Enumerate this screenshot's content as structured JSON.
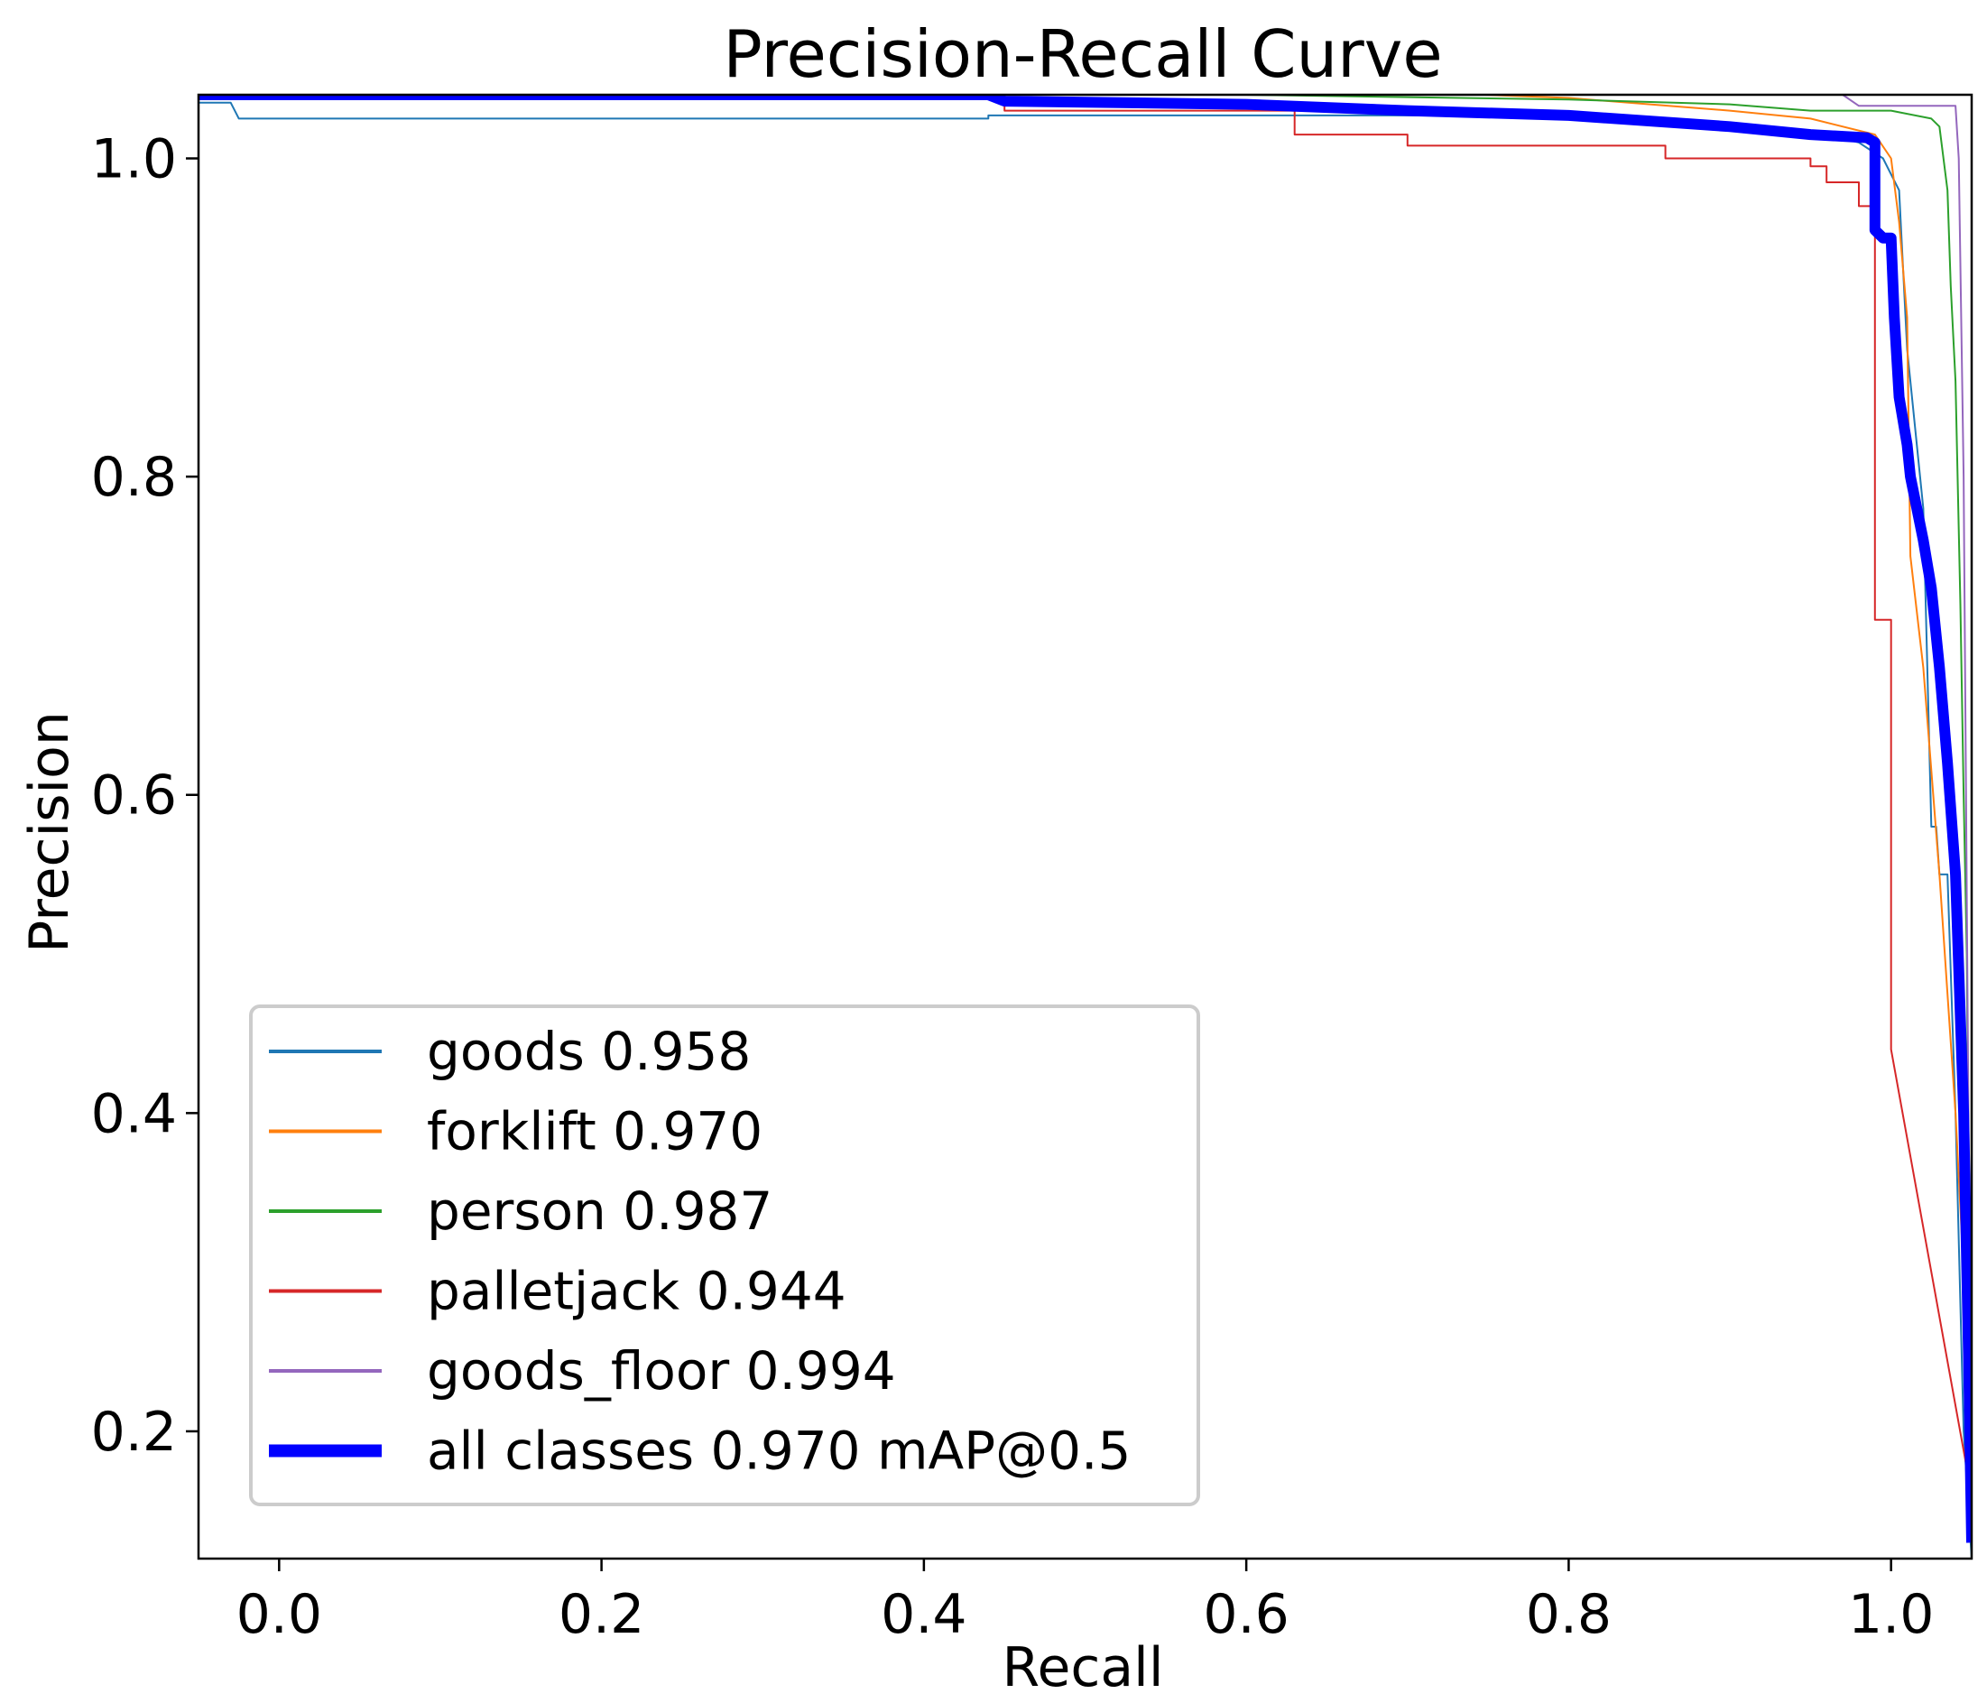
{
  "chart_data": {
    "type": "line",
    "title": "Precision-Recall Curve",
    "xlabel": "Recall",
    "ylabel": "Precision",
    "xlim": [
      -0.05,
      1.05
    ],
    "ylim": [
      0.12,
      1.04
    ],
    "grid": false,
    "legend_position": "lower-left",
    "xticks": [
      0.0,
      0.2,
      0.4,
      0.6,
      0.8,
      1.0
    ],
    "xtick_labels": [
      "0.0",
      "0.2",
      "0.4",
      "0.6",
      "0.8",
      "1.0"
    ],
    "yticks": [
      0.2,
      0.4,
      0.6,
      0.8,
      1.0
    ],
    "ytick_labels": [
      "0.2",
      "0.4",
      "0.6",
      "0.8",
      "1.0"
    ],
    "series": [
      {
        "name": "goods",
        "score": "0.958",
        "label": "goods 0.958",
        "color": "#1f77b4",
        "width": 2,
        "points": [
          [
            -0.05,
            1.035
          ],
          [
            -0.03,
            1.035
          ],
          [
            -0.025,
            1.025
          ],
          [
            0.44,
            1.025
          ],
          [
            0.44,
            1.027
          ],
          [
            0.75,
            1.027
          ],
          [
            0.8,
            1.025
          ],
          [
            0.9,
            1.02
          ],
          [
            0.96,
            1.015
          ],
          [
            0.98,
            1.01
          ],
          [
            0.995,
            1.0
          ],
          [
            1.0,
            0.99
          ],
          [
            1.005,
            0.98
          ],
          [
            1.01,
            0.88
          ],
          [
            1.02,
            0.78
          ],
          [
            1.025,
            0.58
          ],
          [
            1.028,
            0.58
          ],
          [
            1.03,
            0.55
          ],
          [
            1.035,
            0.55
          ],
          [
            1.04,
            0.4
          ],
          [
            1.045,
            0.2
          ],
          [
            1.05,
            0.12
          ]
        ]
      },
      {
        "name": "forklift",
        "score": "0.970",
        "label": "forklift 0.970",
        "color": "#ff7f0e",
        "width": 2,
        "points": [
          [
            -0.05,
            1.04
          ],
          [
            0.72,
            1.04
          ],
          [
            0.72,
            1.041
          ],
          [
            0.8,
            1.038
          ],
          [
            0.9,
            1.03
          ],
          [
            0.95,
            1.025
          ],
          [
            0.99,
            1.015
          ],
          [
            1.0,
            1.0
          ],
          [
            1.005,
            0.96
          ],
          [
            1.01,
            0.9
          ],
          [
            1.012,
            0.75
          ],
          [
            1.02,
            0.68
          ],
          [
            1.03,
            0.55
          ],
          [
            1.04,
            0.4
          ],
          [
            1.045,
            0.3
          ],
          [
            1.05,
            0.13
          ]
        ]
      },
      {
        "name": "person",
        "score": "0.987",
        "label": "person 0.987",
        "color": "#2ca02c",
        "width": 2,
        "points": [
          [
            -0.05,
            1.04
          ],
          [
            0.6,
            1.04
          ],
          [
            0.8,
            1.037
          ],
          [
            0.9,
            1.034
          ],
          [
            0.95,
            1.03
          ],
          [
            1.0,
            1.03
          ],
          [
            1.025,
            1.025
          ],
          [
            1.03,
            1.02
          ],
          [
            1.035,
            0.98
          ],
          [
            1.037,
            0.92
          ],
          [
            1.04,
            0.86
          ],
          [
            1.043,
            0.72
          ],
          [
            1.045,
            0.6
          ],
          [
            1.047,
            0.5
          ],
          [
            1.05,
            0.13
          ]
        ]
      },
      {
        "name": "palletjack",
        "score": "0.944",
        "label": "palletjack 0.944",
        "color": "#d62728",
        "width": 2,
        "points": [
          [
            -0.05,
            1.04
          ],
          [
            0.45,
            1.04
          ],
          [
            0.45,
            1.03
          ],
          [
            0.63,
            1.03
          ],
          [
            0.63,
            1.015
          ],
          [
            0.7,
            1.015
          ],
          [
            0.7,
            1.008
          ],
          [
            0.86,
            1.008
          ],
          [
            0.86,
            1.0
          ],
          [
            0.95,
            1.0
          ],
          [
            0.95,
            0.995
          ],
          [
            0.96,
            0.995
          ],
          [
            0.96,
            0.985
          ],
          [
            0.98,
            0.985
          ],
          [
            0.98,
            0.97
          ],
          [
            0.99,
            0.97
          ],
          [
            0.99,
            0.71
          ],
          [
            1.0,
            0.71
          ],
          [
            1.0,
            0.44
          ],
          [
            1.05,
            0.16
          ]
        ]
      },
      {
        "name": "goods_floor",
        "score": "0.994",
        "label": "goods_floor 0.994",
        "color": "#9467bd",
        "width": 2,
        "points": [
          [
            -0.05,
            1.04
          ],
          [
            0.97,
            1.04
          ],
          [
            0.98,
            1.033
          ],
          [
            1.04,
            1.033
          ],
          [
            1.042,
            1.0
          ],
          [
            1.045,
            0.8
          ],
          [
            1.05,
            0.13
          ]
        ]
      },
      {
        "name": "all classes",
        "score": "0.970",
        "label": "all classes 0.970 mAP@0.5",
        "color": "#0000ff",
        "width": 12,
        "points": [
          [
            -0.05,
            1.04
          ],
          [
            0.44,
            1.04
          ],
          [
            0.45,
            1.036
          ],
          [
            0.6,
            1.034
          ],
          [
            0.7,
            1.03
          ],
          [
            0.8,
            1.027
          ],
          [
            0.9,
            1.02
          ],
          [
            0.95,
            1.015
          ],
          [
            0.985,
            1.013
          ],
          [
            0.99,
            1.01
          ],
          [
            0.99,
            0.955
          ],
          [
            0.995,
            0.95
          ],
          [
            1.0,
            0.95
          ],
          [
            1.002,
            0.9
          ],
          [
            1.005,
            0.85
          ],
          [
            1.01,
            0.82
          ],
          [
            1.012,
            0.8
          ],
          [
            1.02,
            0.76
          ],
          [
            1.025,
            0.73
          ],
          [
            1.03,
            0.68
          ],
          [
            1.035,
            0.62
          ],
          [
            1.04,
            0.55
          ],
          [
            1.045,
            0.4
          ],
          [
            1.048,
            0.25
          ],
          [
            1.05,
            0.13
          ]
        ]
      }
    ]
  }
}
